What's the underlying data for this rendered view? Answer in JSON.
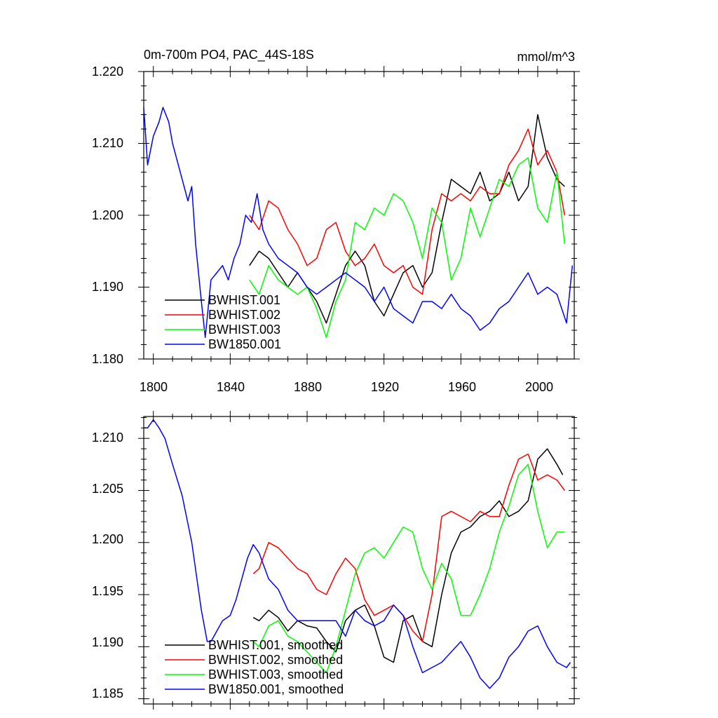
{
  "chart_data": [
    {
      "type": "line",
      "title_left": "0m-700m PO4, PAC_44S-18S",
      "title_right": "mmol/m^3",
      "xlim": [
        1795,
        2019
      ],
      "ylim": [
        1.18,
        1.22
      ],
      "x_ticks": [
        1800,
        1840,
        1880,
        1920,
        1960,
        2000
      ],
      "x_tick_labels": [
        "1800",
        "1840",
        "1880",
        "1920",
        "1960",
        "2000"
      ],
      "y_ticks": [
        1.18,
        1.19,
        1.2,
        1.21,
        1.22
      ],
      "y_tick_labels": [
        "1.180",
        "1.190",
        "1.200",
        "1.210",
        "1.220"
      ],
      "legend": [
        "BWHIST.001",
        "BWHIST.002",
        "BWHIST.003",
        "BW1850.001"
      ],
      "series": [
        {
          "name": "BWHIST.001",
          "color": "#000000",
          "x": [
            1850,
            1855,
            1860,
            1865,
            1870,
            1875,
            1880,
            1885,
            1890,
            1895,
            1900,
            1905,
            1910,
            1915,
            1920,
            1925,
            1930,
            1935,
            1940,
            1945,
            1950,
            1955,
            1960,
            1965,
            1970,
            1975,
            1980,
            1985,
            1990,
            1995,
            2000,
            2005,
            2010,
            2014
          ],
          "values": [
            1.193,
            1.195,
            1.194,
            1.192,
            1.19,
            1.192,
            1.19,
            1.188,
            1.185,
            1.189,
            1.193,
            1.195,
            1.193,
            1.188,
            1.186,
            1.189,
            1.192,
            1.193,
            1.19,
            1.192,
            1.199,
            1.205,
            1.204,
            1.203,
            1.206,
            1.202,
            1.203,
            1.206,
            1.202,
            1.204,
            1.214,
            1.208,
            1.205,
            1.204
          ]
        },
        {
          "name": "BWHIST.002",
          "color": "#ff0000",
          "x": [
            1850,
            1855,
            1860,
            1865,
            1870,
            1875,
            1880,
            1885,
            1890,
            1895,
            1900,
            1905,
            1910,
            1915,
            1920,
            1925,
            1930,
            1935,
            1940,
            1945,
            1950,
            1955,
            1960,
            1965,
            1970,
            1975,
            1980,
            1985,
            1990,
            1995,
            2000,
            2005,
            2010,
            2014
          ],
          "values": [
            1.2,
            1.198,
            1.202,
            1.201,
            1.198,
            1.196,
            1.193,
            1.194,
            1.198,
            1.199,
            1.195,
            1.193,
            1.194,
            1.196,
            1.193,
            1.192,
            1.193,
            1.19,
            1.189,
            1.198,
            1.203,
            1.202,
            1.203,
            1.202,
            1.204,
            1.203,
            1.203,
            1.207,
            1.209,
            1.212,
            1.207,
            1.209,
            1.206,
            1.2
          ]
        },
        {
          "name": "BWHIST.003",
          "color": "#00ff00",
          "x": [
            1850,
            1855,
            1860,
            1865,
            1870,
            1875,
            1880,
            1885,
            1890,
            1895,
            1900,
            1905,
            1910,
            1915,
            1920,
            1925,
            1930,
            1935,
            1940,
            1945,
            1950,
            1955,
            1960,
            1965,
            1970,
            1975,
            1980,
            1985,
            1990,
            1995,
            2000,
            2005,
            2010,
            2014
          ],
          "values": [
            1.191,
            1.189,
            1.193,
            1.191,
            1.19,
            1.189,
            1.19,
            1.187,
            1.183,
            1.188,
            1.191,
            1.199,
            1.198,
            1.201,
            1.2,
            1.203,
            1.202,
            1.199,
            1.194,
            1.201,
            1.199,
            1.191,
            1.194,
            1.201,
            1.197,
            1.201,
            1.205,
            1.204,
            1.207,
            1.208,
            1.201,
            1.199,
            1.206,
            1.196
          ]
        },
        {
          "name": "BW1850.001",
          "color": "#0000ff",
          "x": [
            1795,
            1797,
            1800,
            1803,
            1805,
            1808,
            1810,
            1813,
            1815,
            1818,
            1820,
            1822,
            1825,
            1827,
            1830,
            1833,
            1836,
            1839,
            1842,
            1845,
            1848,
            1851,
            1854,
            1857,
            1860,
            1865,
            1870,
            1875,
            1880,
            1885,
            1890,
            1895,
            1900,
            1905,
            1910,
            1915,
            1920,
            1925,
            1930,
            1935,
            1940,
            1945,
            1950,
            1955,
            1960,
            1965,
            1970,
            1975,
            1980,
            1985,
            1990,
            1995,
            2000,
            2005,
            2010,
            2015,
            2018
          ],
          "values": [
            1.215,
            1.207,
            1.211,
            1.213,
            1.215,
            1.213,
            1.21,
            1.207,
            1.205,
            1.202,
            1.204,
            1.196,
            1.188,
            1.183,
            1.191,
            1.192,
            1.193,
            1.191,
            1.194,
            1.196,
            1.2,
            1.199,
            1.203,
            1.198,
            1.196,
            1.194,
            1.193,
            1.192,
            1.19,
            1.189,
            1.19,
            1.191,
            1.192,
            1.191,
            1.19,
            1.188,
            1.19,
            1.187,
            1.186,
            1.185,
            1.188,
            1.188,
            1.187,
            1.189,
            1.187,
            1.186,
            1.184,
            1.185,
            1.187,
            1.188,
            1.19,
            1.192,
            1.189,
            1.19,
            1.189,
            1.185,
            1.193
          ]
        }
      ]
    },
    {
      "type": "line",
      "xlim": [
        1795,
        2019
      ],
      "ylim": [
        1.1845,
        1.2121
      ],
      "x_ticks": [
        1800,
        1840,
        1880,
        1920,
        1960,
        2000
      ],
      "y_ticks": [
        1.185,
        1.19,
        1.195,
        1.2,
        1.205,
        1.21
      ],
      "y_tick_labels": [
        "1.185",
        "1.190",
        "1.195",
        "1.200",
        "1.205",
        "1.210"
      ],
      "legend": [
        "BWHIST.001, smoothed",
        "BWHIST.002, smoothed",
        "BWHIST.003, smoothed",
        "BW1850.001, smoothed"
      ],
      "series": [
        {
          "name": "BWHIST.001, smoothed",
          "color": "#000000",
          "x": [
            1852,
            1855,
            1860,
            1865,
            1870,
            1875,
            1880,
            1885,
            1890,
            1895,
            1900,
            1905,
            1910,
            1915,
            1920,
            1925,
            1930,
            1935,
            1940,
            1945,
            1950,
            1955,
            1960,
            1965,
            1970,
            1975,
            1980,
            1985,
            1990,
            1995,
            2000,
            2005,
            2010,
            2013
          ],
          "values": [
            1.1928,
            1.1925,
            1.1935,
            1.1928,
            1.1915,
            1.1925,
            1.192,
            1.1918,
            1.1905,
            1.1895,
            1.1925,
            1.1935,
            1.194,
            1.192,
            1.189,
            1.1885,
            1.1925,
            1.193,
            1.1905,
            1.19,
            1.195,
            1.199,
            1.201,
            1.2015,
            1.2025,
            1.203,
            1.204,
            1.2025,
            1.203,
            1.204,
            1.208,
            1.209,
            1.2075,
            1.2065
          ]
        },
        {
          "name": "BWHIST.002, smoothed",
          "color": "#ff0000",
          "x": [
            1852,
            1855,
            1860,
            1865,
            1870,
            1875,
            1880,
            1885,
            1890,
            1895,
            1900,
            1905,
            1910,
            1915,
            1920,
            1925,
            1930,
            1935,
            1940,
            1945,
            1950,
            1955,
            1960,
            1965,
            1970,
            1975,
            1980,
            1985,
            1990,
            1995,
            2000,
            2005,
            2010,
            2014
          ],
          "values": [
            1.197,
            1.1975,
            1.2,
            1.1995,
            1.1985,
            1.1975,
            1.197,
            1.1955,
            1.195,
            1.197,
            1.1985,
            1.1975,
            1.1945,
            1.193,
            1.1935,
            1.194,
            1.193,
            1.1915,
            1.1905,
            1.195,
            1.2025,
            1.203,
            1.2025,
            1.202,
            1.203,
            1.2025,
            1.2025,
            1.2055,
            1.208,
            1.2085,
            1.206,
            1.2065,
            1.206,
            1.205
          ]
        },
        {
          "name": "BWHIST.003, smoothed",
          "color": "#00ff00",
          "x": [
            1852,
            1855,
            1860,
            1865,
            1870,
            1875,
            1880,
            1885,
            1890,
            1895,
            1900,
            1905,
            1910,
            1915,
            1920,
            1925,
            1930,
            1935,
            1940,
            1945,
            1950,
            1955,
            1960,
            1965,
            1970,
            1975,
            1980,
            1985,
            1990,
            1995,
            2000,
            2005,
            2010,
            2014
          ],
          "values": [
            1.1905,
            1.19,
            1.192,
            1.1925,
            1.191,
            1.1905,
            1.1895,
            1.1885,
            1.1875,
            1.19,
            1.1935,
            1.197,
            1.199,
            1.1995,
            1.1985,
            1.2,
            1.2015,
            1.201,
            1.1975,
            1.1955,
            1.198,
            1.1965,
            1.193,
            1.193,
            1.195,
            1.1975,
            1.201,
            1.2035,
            1.2065,
            1.2075,
            1.203,
            1.1995,
            1.201,
            1.201
          ]
        },
        {
          "name": "BW1850.001, smoothed",
          "color": "#0000ff",
          "x": [
            1795,
            1797,
            1800,
            1803,
            1806,
            1810,
            1815,
            1820,
            1825,
            1828,
            1830,
            1833,
            1836,
            1840,
            1843,
            1846,
            1849,
            1852,
            1855,
            1860,
            1865,
            1870,
            1875,
            1880,
            1885,
            1890,
            1895,
            1900,
            1905,
            1910,
            1915,
            1920,
            1925,
            1930,
            1935,
            1940,
            1945,
            1950,
            1955,
            1960,
            1965,
            1970,
            1975,
            1980,
            1985,
            1990,
            1995,
            2000,
            2005,
            2010,
            2015,
            2017
          ],
          "values": [
            1.211,
            1.211,
            1.2118,
            1.211,
            1.21,
            1.2075,
            1.2045,
            1.2,
            1.1935,
            1.1905,
            1.1905,
            1.1915,
            1.1925,
            1.193,
            1.1945,
            1.1965,
            1.1985,
            1.1998,
            1.199,
            1.1965,
            1.1955,
            1.1935,
            1.1925,
            1.1925,
            1.1925,
            1.1925,
            1.1925,
            1.191,
            1.1935,
            1.1925,
            1.192,
            1.1925,
            1.194,
            1.193,
            1.19,
            1.1875,
            1.188,
            1.1885,
            1.1895,
            1.1905,
            1.189,
            1.187,
            1.186,
            1.187,
            1.189,
            1.19,
            1.1915,
            1.192,
            1.19,
            1.1885,
            1.188,
            1.1885
          ]
        }
      ]
    }
  ]
}
